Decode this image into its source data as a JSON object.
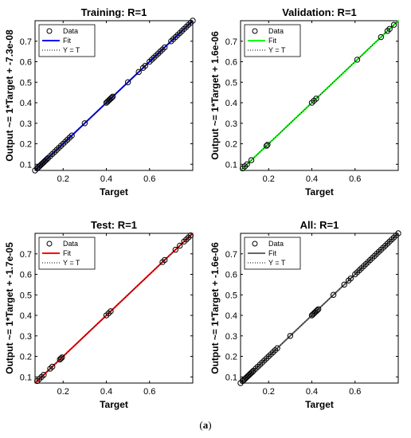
{
  "caption": {
    "open": "(",
    "letter": "a",
    "close": ")"
  },
  "legend_labels": [
    "Data",
    "Fit",
    "Y = T"
  ],
  "colors": {
    "axes": "#000000",
    "marker": "#000000",
    "identity_line": "#000000"
  },
  "chart_data": [
    {
      "type": "scatter",
      "title": "Training: R=1",
      "xlabel": "Target",
      "ylabel": "Output ~= 1*Target + -7.3e-08",
      "xlim": [
        0.07,
        0.8
      ],
      "ylim": [
        0.07,
        0.8
      ],
      "xticks": [
        0.2,
        0.4,
        0.6
      ],
      "yticks": [
        0.1,
        0.2,
        0.3,
        0.4,
        0.5,
        0.6,
        0.7
      ],
      "fit_color": "#0000ff",
      "legend": "top-left",
      "series": [
        {
          "name": "Data",
          "x": [
            0.07,
            0.08,
            0.085,
            0.09,
            0.095,
            0.1,
            0.105,
            0.11,
            0.115,
            0.12,
            0.125,
            0.13,
            0.14,
            0.15,
            0.16,
            0.17,
            0.18,
            0.19,
            0.2,
            0.21,
            0.22,
            0.23,
            0.24,
            0.3,
            0.4,
            0.405,
            0.41,
            0.415,
            0.42,
            0.425,
            0.43,
            0.5,
            0.55,
            0.57,
            0.58,
            0.6,
            0.61,
            0.62,
            0.63,
            0.64,
            0.65,
            0.66,
            0.67,
            0.7,
            0.71,
            0.72,
            0.73,
            0.74,
            0.75,
            0.76,
            0.77,
            0.78,
            0.79,
            0.8
          ]
        },
        {
          "name": "Fit",
          "x": [
            0.07,
            0.8
          ]
        },
        {
          "name": "Y = T",
          "x": [
            0.07,
            0.8
          ]
        }
      ]
    },
    {
      "type": "scatter",
      "title": "Validation: R=1",
      "xlabel": "Target",
      "ylabel": "Output ~= 1*Target + 1.6e-06",
      "xlim": [
        0.07,
        0.8
      ],
      "ylim": [
        0.07,
        0.8
      ],
      "xticks": [
        0.2,
        0.4,
        0.6
      ],
      "yticks": [
        0.1,
        0.2,
        0.3,
        0.4,
        0.5,
        0.6,
        0.7
      ],
      "fit_color": "#00ff00",
      "legend": "top-left",
      "series": [
        {
          "name": "Data",
          "x": [
            0.08,
            0.09,
            0.1,
            0.12,
            0.19,
            0.195,
            0.4,
            0.41,
            0.42,
            0.61,
            0.72,
            0.75,
            0.76,
            0.78
          ]
        },
        {
          "name": "Fit",
          "x": [
            0.07,
            0.8
          ]
        },
        {
          "name": "Y = T",
          "x": [
            0.07,
            0.8
          ]
        }
      ]
    },
    {
      "type": "scatter",
      "title": "Test: R=1",
      "xlabel": "Target",
      "ylabel": "Output ~= 1*Target + -1.7e-05",
      "xlim": [
        0.07,
        0.8
      ],
      "ylim": [
        0.07,
        0.8
      ],
      "xticks": [
        0.2,
        0.4,
        0.6
      ],
      "yticks": [
        0.1,
        0.2,
        0.3,
        0.4,
        0.5,
        0.6,
        0.7
      ],
      "fit_color": "#ff0000",
      "legend": "top-left",
      "series": [
        {
          "name": "Data",
          "x": [
            0.08,
            0.09,
            0.1,
            0.11,
            0.14,
            0.15,
            0.185,
            0.19,
            0.195,
            0.4,
            0.41,
            0.42,
            0.66,
            0.67,
            0.72,
            0.74,
            0.76,
            0.77,
            0.78,
            0.79
          ]
        },
        {
          "name": "Fit",
          "x": [
            0.07,
            0.8
          ]
        },
        {
          "name": "Y = T",
          "x": [
            0.07,
            0.8
          ]
        }
      ]
    },
    {
      "type": "scatter",
      "title": "All: R=1",
      "xlabel": "Target",
      "ylabel": "Output ~= 1*Target + -1.6e-06",
      "xlim": [
        0.07,
        0.8
      ],
      "ylim": [
        0.07,
        0.8
      ],
      "xticks": [
        0.2,
        0.4,
        0.6
      ],
      "yticks": [
        0.1,
        0.2,
        0.3,
        0.4,
        0.5,
        0.6,
        0.7
      ],
      "fit_color": "#666666",
      "legend": "top-left",
      "series": [
        {
          "name": "Data",
          "x": [
            0.07,
            0.08,
            0.085,
            0.09,
            0.095,
            0.1,
            0.105,
            0.11,
            0.115,
            0.12,
            0.125,
            0.13,
            0.14,
            0.15,
            0.16,
            0.17,
            0.18,
            0.19,
            0.2,
            0.21,
            0.22,
            0.23,
            0.24,
            0.3,
            0.4,
            0.405,
            0.41,
            0.415,
            0.42,
            0.425,
            0.43,
            0.5,
            0.55,
            0.57,
            0.58,
            0.6,
            0.61,
            0.62,
            0.63,
            0.64,
            0.65,
            0.66,
            0.67,
            0.68,
            0.69,
            0.7,
            0.71,
            0.72,
            0.73,
            0.74,
            0.75,
            0.76,
            0.77,
            0.78,
            0.79,
            0.8
          ]
        },
        {
          "name": "Fit",
          "x": [
            0.07,
            0.8
          ]
        },
        {
          "name": "Y = T",
          "x": [
            0.07,
            0.8
          ]
        }
      ]
    }
  ]
}
